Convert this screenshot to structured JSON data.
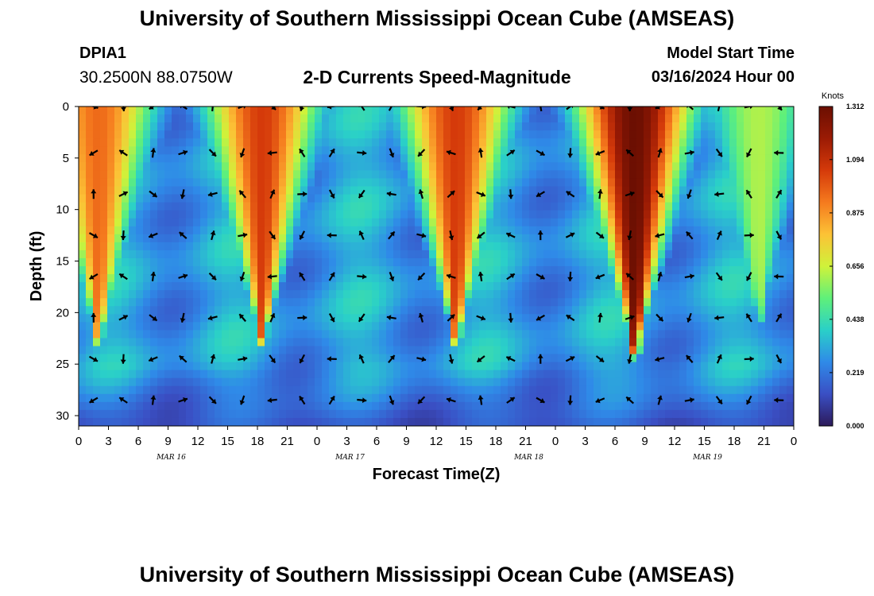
{
  "header": {
    "title": "University of Southern Mississippi Ocean Cube (AMSEAS)",
    "station_id": "DPIA1",
    "station_coords": "30.2500N  88.0750W",
    "subtitle": "2-D Currents Speed-Magnitude",
    "model_start_label": "Model Start Time",
    "model_start_value": "03/16/2024 Hour 00"
  },
  "footer": {
    "title": "University of Southern Mississippi Ocean Cube (AMSEAS)"
  },
  "chart_data": {
    "type": "heatmap",
    "title": "2-D Currents Speed-Magnitude",
    "xlabel": "Forecast Time(Z)",
    "ylabel": "Depth (ft)",
    "xlim_hours": [
      0,
      72
    ],
    "ylim": [
      0,
      31
    ],
    "y_inverted": true,
    "x_tick_hours": [
      0,
      3,
      6,
      9,
      12,
      15,
      18,
      21,
      24,
      27,
      30,
      33,
      36,
      39,
      42,
      45,
      48,
      51,
      54,
      57,
      60,
      63,
      66,
      69,
      72
    ],
    "x_tick_labels": [
      "0",
      "3",
      "6",
      "9",
      "12",
      "15",
      "18",
      "21",
      "0",
      "3",
      "6",
      "9",
      "12",
      "15",
      "18",
      "21",
      "0",
      "3",
      "6",
      "9",
      "12",
      "15",
      "18",
      "21",
      "0"
    ],
    "date_labels": [
      {
        "hour": 9,
        "label": "MAR 16"
      },
      {
        "hour": 27,
        "label": "MAR 17"
      },
      {
        "hour": 45,
        "label": "MAR 18"
      },
      {
        "hour": 63,
        "label": "MAR 19"
      }
    ],
    "y_ticks": [
      0,
      5,
      10,
      15,
      20,
      25,
      30
    ],
    "y_tick_labels": [
      "0",
      "5",
      "10",
      "15",
      "20",
      "25",
      "30"
    ],
    "colorbar": {
      "unit": "Knots",
      "min": 0.0,
      "max": 1.312,
      "tick_values": [
        0.0,
        0.219,
        0.438,
        0.656,
        0.875,
        1.094,
        1.312
      ],
      "tick_labels": [
        "0.000",
        "0.219",
        "0.438",
        "0.656",
        "0.875",
        "1.094",
        "1.312"
      ],
      "colors": [
        "#2c1a5a",
        "#3a4fc4",
        "#2f8ae8",
        "#2ad0c8",
        "#5ff07a",
        "#cff23a",
        "#fcc236",
        "#f57a1e",
        "#d53a0a",
        "#9b1b04",
        "#6b0f02"
      ]
    },
    "arrow_depths_ft": [
      0,
      4.5,
      8.5,
      12.5,
      16.5,
      20.5,
      24.5,
      28.5
    ],
    "arrow_hours": [
      1.5,
      4.5,
      7.5,
      10.5,
      13.5,
      16.5,
      19.5,
      22.5,
      25.5,
      28.5,
      31.5,
      34.5,
      37.5,
      40.5,
      43.5,
      46.5,
      49.5,
      52.5,
      55.5,
      58.5,
      61.5,
      64.5,
      67.5,
      70.5
    ],
    "speed_field_description_note": "",
    "strong_current_events": [
      {
        "peak_hour": 2,
        "max_depth_ft": 22,
        "peak_knots": 0.95
      },
      {
        "peak_hour": 18.5,
        "max_depth_ft": 22,
        "peak_knots": 1.05
      },
      {
        "peak_hour": 38,
        "max_depth_ft": 22,
        "peak_knots": 1.05
      },
      {
        "peak_hour": 56,
        "max_depth_ft": 23,
        "peak_knots": 1.31
      },
      {
        "peak_hour": 68.5,
        "max_depth_ft": 20,
        "peak_knots": 0.62
      }
    ]
  }
}
